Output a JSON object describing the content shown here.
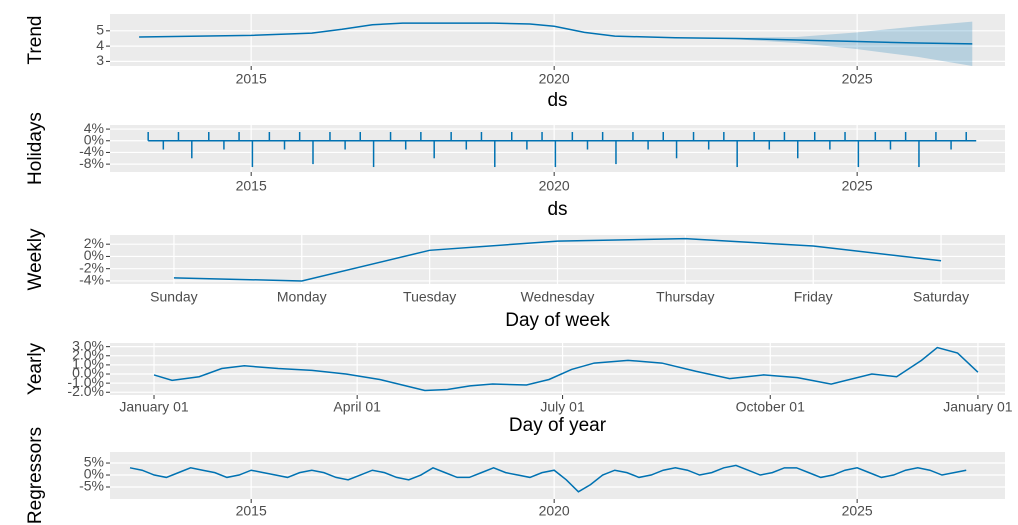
{
  "chart_data": [
    {
      "type": "line",
      "y_label": "Trend",
      "x_label": "ds",
      "color": "#0072b2",
      "band_color": "#0072b2",
      "x": [
        2013.15,
        2015,
        2016,
        2016.5,
        2017,
        2017.5,
        2018,
        2019,
        2019.6,
        2020,
        2020.5,
        2021,
        2022,
        2023,
        2024,
        2025,
        2026,
        2026.9
      ],
      "values": [
        4.6,
        4.7,
        4.85,
        5.1,
        5.4,
        5.5,
        5.5,
        5.5,
        5.45,
        5.3,
        4.9,
        4.65,
        4.55,
        4.5,
        4.4,
        4.3,
        4.2,
        4.15
      ],
      "lower": [
        4.6,
        4.7,
        4.85,
        5.1,
        5.4,
        5.5,
        5.5,
        5.5,
        5.45,
        5.3,
        4.9,
        4.65,
        4.55,
        4.45,
        4.2,
        3.8,
        3.3,
        2.7
      ],
      "upper": [
        4.6,
        4.7,
        4.85,
        5.1,
        5.4,
        5.5,
        5.5,
        5.5,
        5.45,
        5.3,
        4.9,
        4.65,
        4.55,
        4.55,
        4.6,
        4.9,
        5.3,
        5.6
      ],
      "xlim": [
        2012.67,
        2027.44
      ],
      "xticks": [
        2015,
        2020,
        2025
      ],
      "ylim": [
        2.7,
        6.1
      ],
      "yticks": [
        5,
        4,
        3
      ],
      "grid": true
    },
    {
      "type": "spike",
      "y_label": "Holidays",
      "x_label": "ds",
      "color": "#0072b2",
      "x": [
        2013.3,
        2013.55,
        2013.8,
        2014.02,
        2014.3,
        2014.55,
        2014.8,
        2015.02,
        2015.3,
        2015.55,
        2015.8,
        2016.02,
        2016.3,
        2016.55,
        2016.8,
        2017.02,
        2017.3,
        2017.55,
        2017.8,
        2018.02,
        2018.3,
        2018.55,
        2018.8,
        2019.02,
        2019.3,
        2019.55,
        2019.8,
        2020.02,
        2020.3,
        2020.55,
        2020.8,
        2021.02,
        2021.3,
        2021.55,
        2021.8,
        2022.02,
        2022.3,
        2022.55,
        2022.8,
        2023.02,
        2023.3,
        2023.55,
        2023.8,
        2024.02,
        2024.3,
        2024.55,
        2024.8,
        2025.02,
        2025.3,
        2025.55,
        2025.8,
        2026.02,
        2026.3,
        2026.55,
        2026.8
      ],
      "values": [
        3,
        -3,
        3,
        -6,
        3,
        -3,
        3,
        -9,
        3,
        -3,
        3,
        -8,
        3,
        -3,
        3,
        -9,
        3,
        -3,
        3,
        -6,
        3,
        -3,
        3,
        -9,
        3,
        -3,
        3,
        -9,
        3,
        -3,
        3,
        -8,
        3,
        -3,
        3,
        -6,
        3,
        -3,
        3,
        -9,
        3,
        -3,
        3,
        -6,
        3,
        -3,
        3,
        -9,
        3,
        -3,
        3,
        -9,
        3,
        -3,
        3
      ],
      "xlim": [
        2012.67,
        2027.44
      ],
      "xticks": [
        2015,
        2020,
        2025
      ],
      "ylim": [
        -10.7,
        5.4
      ],
      "yticks": [
        {
          "value": 4,
          "label": "4%"
        },
        {
          "value": 0,
          "label": "0%"
        },
        {
          "value": -4,
          "label": "-4%"
        },
        {
          "value": -8,
          "label": "-8%"
        }
      ],
      "grid": true
    },
    {
      "type": "line",
      "y_label": "Weekly",
      "x_label": "Day of week",
      "color": "#0072b2",
      "categories": [
        "Sunday",
        "Monday",
        "Tuesday",
        "Wednesday",
        "Thursday",
        "Friday",
        "Saturday"
      ],
      "values": [
        -3.5,
        -4.0,
        1.0,
        2.5,
        2.9,
        1.7,
        -0.7
      ],
      "ylim": [
        -4.5,
        3.5
      ],
      "yticks": [
        {
          "value": 2,
          "label": "2%"
        },
        {
          "value": 0,
          "label": "0%"
        },
        {
          "value": -2,
          "label": "-2%"
        },
        {
          "value": -4,
          "label": "-4%"
        }
      ],
      "grid": true
    },
    {
      "type": "line",
      "y_label": "Yearly",
      "x_label": "Day of year",
      "color": "#0072b2",
      "x": [
        0,
        8,
        20,
        30,
        40,
        55,
        70,
        85,
        100,
        110,
        120,
        130,
        140,
        150,
        165,
        175,
        185,
        195,
        210,
        225,
        240,
        255,
        270,
        285,
        300,
        318,
        329,
        340,
        347,
        356,
        365
      ],
      "values": [
        -0.1,
        -0.7,
        -0.3,
        0.6,
        0.9,
        0.6,
        0.4,
        0.0,
        -0.6,
        -1.2,
        -1.8,
        -1.7,
        -1.3,
        -1.1,
        -1.2,
        -0.6,
        0.5,
        1.2,
        1.5,
        1.2,
        0.3,
        -0.5,
        -0.1,
        -0.4,
        -1.1,
        0.0,
        -0.3,
        1.5,
        2.9,
        2.3,
        0.2
      ],
      "xlim": [
        -19.5,
        377
      ],
      "xticks": [
        {
          "value": 0,
          "label": "January 01"
        },
        {
          "value": 90,
          "label": "April 01"
        },
        {
          "value": 181,
          "label": "July 01"
        },
        {
          "value": 273,
          "label": "October 01"
        },
        {
          "value": 365,
          "label": "January 01"
        }
      ],
      "ylim": [
        -2.3,
        3.4
      ],
      "yticks": [
        {
          "value": 3,
          "label": "3.0%"
        },
        {
          "value": 2,
          "label": "2.0%"
        },
        {
          "value": 1,
          "label": "1.0%"
        },
        {
          "value": 0,
          "label": "0.0%"
        },
        {
          "value": -1,
          "label": "-1.0%"
        },
        {
          "value": -2,
          "label": "-2.0%"
        }
      ],
      "grid": true
    },
    {
      "type": "line",
      "y_label": "Regressors",
      "color": "#0072b2",
      "x": [
        2013.0,
        2013.2,
        2013.4,
        2013.6,
        2013.8,
        2014.0,
        2014.2,
        2014.4,
        2014.6,
        2014.8,
        2015.0,
        2015.2,
        2015.4,
        2015.6,
        2015.8,
        2016.0,
        2016.2,
        2016.4,
        2016.6,
        2016.8,
        2017.0,
        2017.2,
        2017.4,
        2017.6,
        2017.8,
        2018.0,
        2018.2,
        2018.4,
        2018.6,
        2018.8,
        2019.0,
        2019.2,
        2019.4,
        2019.6,
        2019.8,
        2020.0,
        2020.2,
        2020.4,
        2020.6,
        2020.8,
        2021.0,
        2021.2,
        2021.4,
        2021.6,
        2021.8,
        2022.0,
        2022.2,
        2022.4,
        2022.6,
        2022.8,
        2023.0,
        2023.2,
        2023.4,
        2023.6,
        2023.8,
        2024.0,
        2024.2,
        2024.4,
        2024.6,
        2024.8,
        2025.0,
        2025.2,
        2025.4,
        2025.6,
        2025.8,
        2026.0,
        2026.2,
        2026.4,
        2026.6,
        2026.8
      ],
      "values": [
        3,
        2,
        0,
        -1,
        1,
        3,
        2,
        1,
        -1,
        0,
        2,
        1,
        0,
        -1,
        1,
        2,
        1,
        -1,
        -2,
        0,
        2,
        1,
        -1,
        -2,
        0,
        3,
        1,
        -1,
        -1,
        1,
        3,
        1,
        0,
        -1,
        1,
        2,
        -2,
        -7,
        -4,
        0,
        2,
        1,
        -1,
        0,
        2,
        3,
        2,
        0,
        1,
        3,
        4,
        2,
        0,
        1,
        3,
        3,
        1,
        -1,
        0,
        2,
        3,
        1,
        -1,
        0,
        2,
        3,
        2,
        0,
        1,
        2
      ],
      "xlim": [
        2012.67,
        2027.44
      ],
      "xticks": [
        2015,
        2020,
        2025
      ],
      "ylim": [
        -10,
        9.6
      ],
      "yticks": [
        {
          "value": 5,
          "label": "5%"
        },
        {
          "value": 0,
          "label": "0%"
        },
        {
          "value": -5,
          "label": "-5%"
        }
      ],
      "grid": true
    }
  ]
}
